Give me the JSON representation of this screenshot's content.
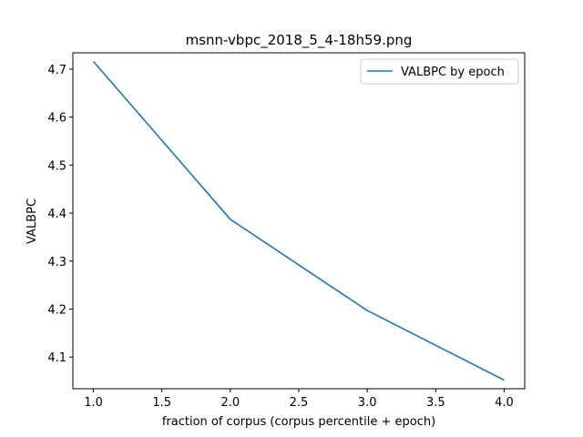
{
  "chart_data": {
    "type": "line",
    "title": "msnn-vbpc_2018_5_4-18h59.png",
    "xlabel": "fraction of corpus (corpus percentile + epoch)",
    "ylabel": "VALBPC",
    "xlim": [
      0.85,
      4.15
    ],
    "ylim": [
      4.034,
      4.734
    ],
    "x_ticks": [
      1.0,
      1.5,
      2.0,
      2.5,
      3.0,
      3.5,
      4.0
    ],
    "x_tick_labels": [
      "1.0",
      "1.5",
      "2.0",
      "2.5",
      "3.0",
      "3.5",
      "4.0"
    ],
    "y_ticks": [
      4.1,
      4.2,
      4.3,
      4.4,
      4.5,
      4.6,
      4.7
    ],
    "y_tick_labels": [
      "4.1",
      "4.2",
      "4.3",
      "4.4",
      "4.5",
      "4.6",
      "4.7"
    ],
    "grid": false,
    "legend_position": "top-right",
    "series": [
      {
        "name": "VALBPC by epoch",
        "color": "#1f77b4",
        "x": [
          1.0,
          2.0,
          3.0,
          4.0
        ],
        "y": [
          4.716,
          4.387,
          4.197,
          4.052
        ]
      }
    ]
  }
}
